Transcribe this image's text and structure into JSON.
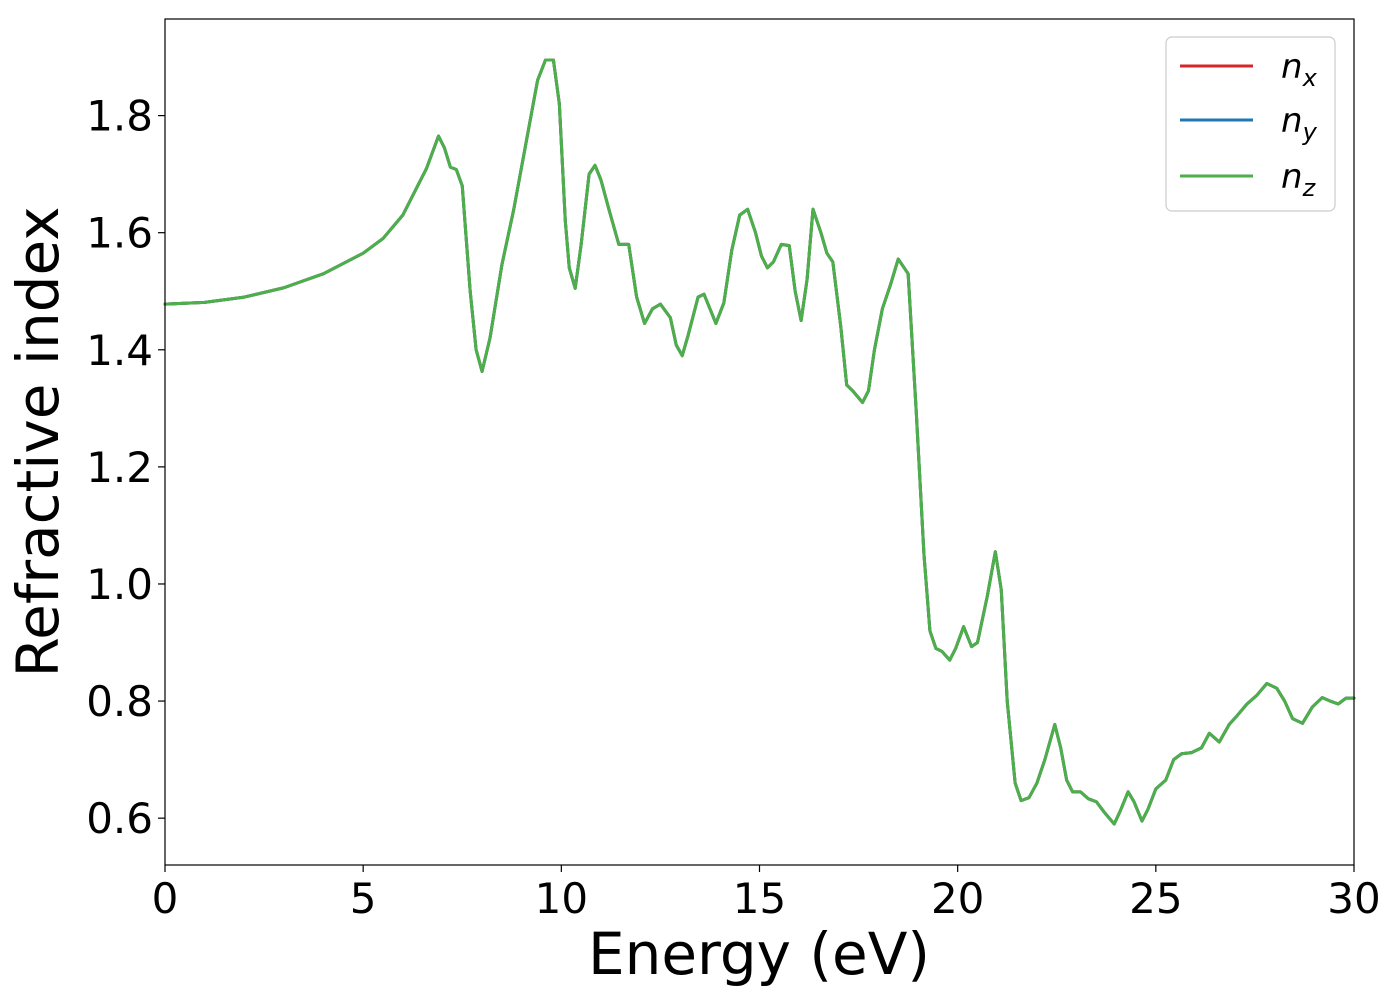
{
  "chart_data": {
    "type": "line",
    "xlabel": "Energy (eV)",
    "ylabel": "Refractive index",
    "xlim": [
      0,
      30
    ],
    "ylim": [
      0.52,
      1.965
    ],
    "xticks": [
      0,
      5,
      10,
      15,
      20,
      25,
      30
    ],
    "xtick_labels": [
      "0",
      "5",
      "10",
      "15",
      "20",
      "25",
      "30"
    ],
    "yticks": [
      0.6,
      0.8,
      1.0,
      1.2,
      1.4,
      1.6,
      1.8
    ],
    "ytick_labels": [
      "0.6",
      "0.8",
      "1.0",
      "1.2",
      "1.4",
      "1.6",
      "1.8"
    ],
    "grid": false,
    "legend_position": "top-right",
    "series": [
      {
        "name": "n",
        "subscript": "x",
        "color": "#d62728"
      },
      {
        "name": "n",
        "subscript": "y",
        "color": "#1f77b4"
      },
      {
        "name": "n",
        "subscript": "z",
        "color": "#4daf4a"
      }
    ],
    "x": [
      0,
      1,
      2,
      3,
      4,
      5,
      5.5,
      6,
      6.3,
      6.6,
      6.9,
      7.05,
      7.2,
      7.35,
      7.5,
      7.7,
      7.85,
      8.0,
      8.2,
      8.5,
      8.8,
      9.1,
      9.4,
      9.6,
      9.8,
      9.95,
      10.1,
      10.2,
      10.35,
      10.5,
      10.7,
      10.85,
      11.0,
      11.2,
      11.45,
      11.7,
      11.9,
      12.1,
      12.3,
      12.5,
      12.75,
      12.9,
      13.05,
      13.2,
      13.45,
      13.6,
      13.75,
      13.9,
      14.1,
      14.3,
      14.5,
      14.7,
      14.9,
      15.05,
      15.2,
      15.35,
      15.55,
      15.75,
      15.9,
      16.05,
      16.2,
      16.35,
      16.55,
      16.7,
      16.85,
      17.05,
      17.2,
      17.35,
      17.6,
      17.75,
      17.9,
      18.1,
      18.3,
      18.5,
      18.75,
      18.95,
      19.15,
      19.3,
      19.45,
      19.6,
      19.8,
      19.95,
      20.15,
      20.35,
      20.5,
      20.75,
      20.95,
      21.1,
      21.25,
      21.45,
      21.6,
      21.8,
      22.0,
      22.2,
      22.45,
      22.6,
      22.75,
      22.9,
      23.1,
      23.3,
      23.5,
      23.7,
      23.95,
      24.1,
      24.3,
      24.45,
      24.65,
      24.8,
      25.0,
      25.25,
      25.45,
      25.65,
      25.9,
      26.15,
      26.35,
      26.6,
      26.85,
      27.05,
      27.3,
      27.55,
      27.8,
      28.05,
      28.25,
      28.45,
      28.7,
      28.95,
      29.2,
      29.4,
      29.6,
      29.8,
      30.0
    ],
    "y": [
      1.478,
      1.481,
      1.49,
      1.506,
      1.53,
      1.565,
      1.59,
      1.63,
      1.67,
      1.71,
      1.765,
      1.745,
      1.712,
      1.708,
      1.68,
      1.5,
      1.4,
      1.363,
      1.42,
      1.545,
      1.64,
      1.75,
      1.86,
      1.895,
      1.895,
      1.82,
      1.62,
      1.54,
      1.505,
      1.58,
      1.7,
      1.715,
      1.69,
      1.64,
      1.58,
      1.58,
      1.49,
      1.445,
      1.47,
      1.478,
      1.455,
      1.408,
      1.39,
      1.425,
      1.49,
      1.495,
      1.47,
      1.445,
      1.48,
      1.57,
      1.63,
      1.64,
      1.6,
      1.56,
      1.54,
      1.55,
      1.58,
      1.578,
      1.5,
      1.45,
      1.52,
      1.64,
      1.6,
      1.565,
      1.55,
      1.44,
      1.34,
      1.33,
      1.31,
      1.33,
      1.4,
      1.47,
      1.51,
      1.555,
      1.53,
      1.3,
      1.05,
      0.92,
      0.89,
      0.885,
      0.87,
      0.89,
      0.927,
      0.893,
      0.9,
      0.98,
      1.055,
      0.99,
      0.8,
      0.66,
      0.63,
      0.635,
      0.66,
      0.7,
      0.76,
      0.72,
      0.665,
      0.645,
      0.645,
      0.633,
      0.628,
      0.61,
      0.59,
      0.612,
      0.645,
      0.628,
      0.595,
      0.615,
      0.65,
      0.665,
      0.7,
      0.71,
      0.712,
      0.72,
      0.745,
      0.73,
      0.76,
      0.775,
      0.795,
      0.81,
      0.83,
      0.822,
      0.8,
      0.77,
      0.762,
      0.79,
      0.806,
      0.8,
      0.795,
      0.805,
      0.805
    ]
  }
}
